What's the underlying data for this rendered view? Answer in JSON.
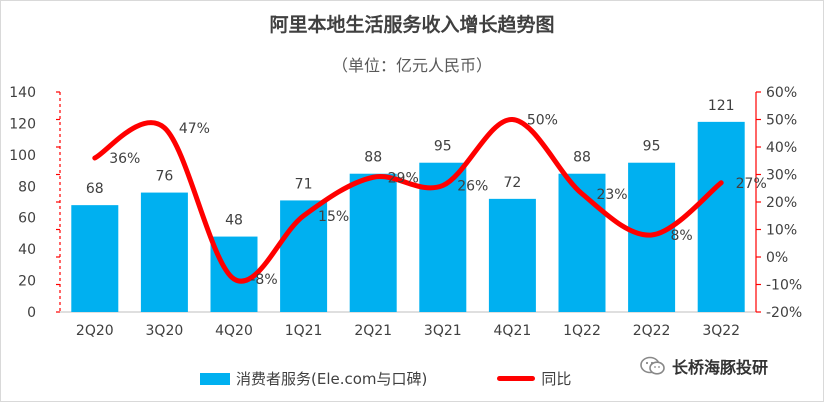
{
  "title": "阿里本地生活服务收入增长趋势图",
  "subtitle": "（单位：亿元人民币）",
  "brand": "长桥海豚投研",
  "colors": {
    "bar": "#00b0f0",
    "line": "#ff0000",
    "axis_right": "#ff0000"
  },
  "chart_data": {
    "type": "bar",
    "categories": [
      "2Q20",
      "3Q20",
      "4Q20",
      "1Q21",
      "2Q21",
      "3Q21",
      "4Q21",
      "1Q22",
      "2Q22",
      "3Q22"
    ],
    "series": [
      {
        "name": "消费者服务(Ele.com与口碑)",
        "type": "bar",
        "axis": "left",
        "values": [
          68,
          76,
          48,
          71,
          88,
          95,
          72,
          88,
          95,
          121
        ]
      },
      {
        "name": "同比",
        "type": "line",
        "axis": "right",
        "values": [
          36,
          47,
          -8,
          15,
          29,
          26,
          50,
          23,
          8,
          27
        ],
        "labels": [
          "36%",
          "47%",
          "-8%",
          "15%",
          "29%",
          "26%",
          "50%",
          "23%",
          "8%",
          "27%"
        ]
      }
    ],
    "y_left": {
      "min": 0,
      "max": 140,
      "ticks": [
        "0",
        "20",
        "40",
        "60",
        "80",
        "100",
        "120",
        "140"
      ]
    },
    "y_right": {
      "min": -20,
      "max": 60,
      "ticks": [
        "-20%",
        "-10%",
        "0%",
        "10%",
        "20%",
        "30%",
        "40%",
        "50%",
        "60%"
      ]
    },
    "legend_position": "bottom",
    "grid": false
  }
}
